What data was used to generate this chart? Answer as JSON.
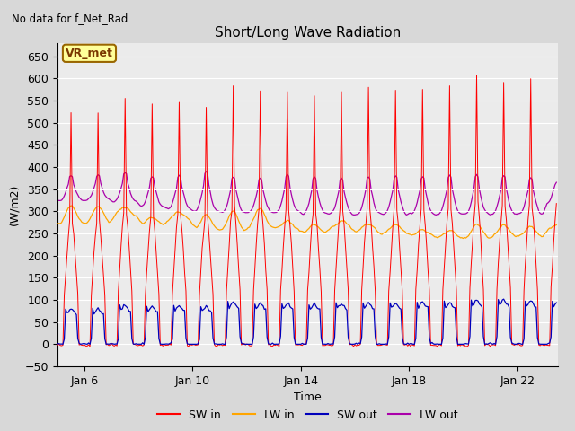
{
  "title": "Short/Long Wave Radiation",
  "subtitle": "No data for f_Net_Rad",
  "xlabel": "Time",
  "ylabel": "(W/m2)",
  "legend_label": "VR_met",
  "ylim": [
    -50,
    680
  ],
  "yticks": [
    -50,
    0,
    50,
    100,
    150,
    200,
    250,
    300,
    350,
    400,
    450,
    500,
    550,
    600,
    650
  ],
  "xlim": [
    5.0,
    23.5
  ],
  "xtick_days": [
    6,
    10,
    14,
    18,
    22
  ],
  "xtick_labels": [
    "Jan 6",
    "Jan 10",
    "Jan 14",
    "Jan 18",
    "Jan 22"
  ],
  "colors": {
    "SW_in": "#ff0000",
    "LW_in": "#ffa500",
    "SW_out": "#0000bb",
    "LW_out": "#aa00aa"
  },
  "background_color": "#d8d8d8",
  "plot_bg_color": "#ebebeb",
  "legend_box_color": "#ffff99",
  "legend_box_edge": "#996600",
  "day_start": 6,
  "dt": 0.05,
  "peak_heights_SW_in": [
    525,
    560,
    540,
    548,
    535,
    580,
    580,
    570,
    560,
    572,
    575,
    572,
    575,
    576,
    605,
    590,
    595,
    598
  ],
  "peak_heights_SW_out": [
    80,
    88,
    85,
    87,
    85,
    95,
    92,
    92,
    90,
    92,
    94,
    92,
    95,
    94,
    100,
    100,
    98,
    98
  ],
  "lw_in_base": [
    270,
    290,
    270,
    278,
    258,
    252,
    260,
    260,
    248,
    257,
    252,
    250,
    242,
    238,
    237,
    238,
    242,
    253
  ],
  "lw_in_peak": [
    315,
    310,
    285,
    300,
    295,
    305,
    310,
    278,
    273,
    282,
    272,
    272,
    262,
    260,
    270,
    273,
    268,
    268
  ],
  "lw_out_base": [
    325,
    320,
    310,
    305,
    300,
    295,
    298,
    298,
    293,
    293,
    293,
    293,
    293,
    293,
    293,
    293,
    293,
    318
  ],
  "lw_out_peak": [
    405,
    415,
    405,
    415,
    428,
    412,
    408,
    418,
    412,
    408,
    412,
    412,
    412,
    418,
    418,
    418,
    412,
    408
  ]
}
